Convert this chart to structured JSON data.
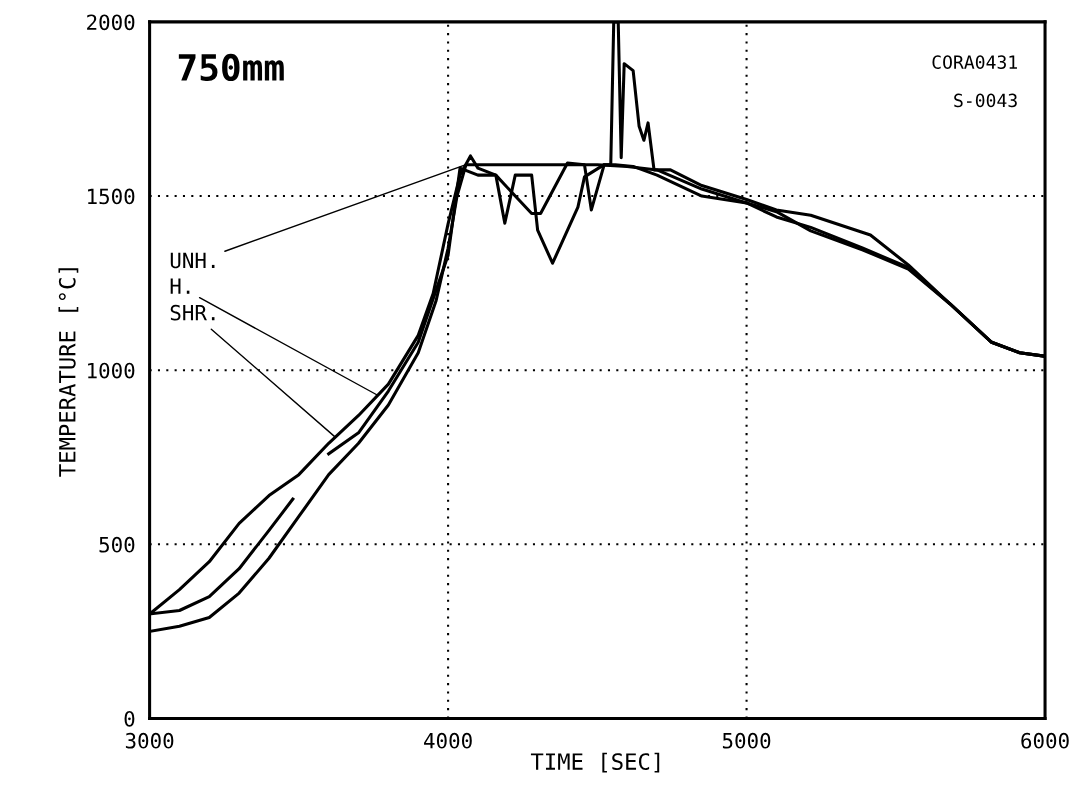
{
  "chart_data": {
    "type": "line",
    "xlabel": "TIME [SEC]",
    "ylabel": "TEMPERATURE [°C]",
    "xlim": [
      3000,
      6000
    ],
    "ylim": [
      0,
      2000
    ],
    "xticks": [
      3000,
      4000,
      5000,
      6000
    ],
    "yticks": [
      0,
      500,
      1000,
      1500,
      2000
    ],
    "grid": true,
    "legend": false,
    "marker": "none",
    "line_style": "solid",
    "annotations": [
      "750mm",
      "CORA0431",
      "S-0043",
      {
        "text": "UNH.",
        "x": 4060,
        "y": 1590
      },
      {
        "text": "H.",
        "x": 3764,
        "y": 928
      },
      {
        "text": "SHR.",
        "x": 3623,
        "y": 807
      }
    ],
    "series": [
      {
        "color": "#000000",
        "x": [
          3000,
          3100,
          3200,
          3300,
          3400,
          3500,
          3600,
          3700,
          3800,
          3900,
          3950,
          4000,
          4040,
          4075,
          4100,
          4160,
          4190,
          4225,
          4280,
          4300,
          4350,
          4435,
          4457,
          4523,
          4560,
          4620,
          4700,
          4850,
          5000,
          5100,
          5215,
          5390,
          5542,
          5682,
          5821,
          5915,
          6000
        ],
        "values": [
          300,
          370,
          450,
          560,
          640,
          700,
          790,
          870,
          960,
          1100,
          1220,
          1420,
          1560,
          1615,
          1580,
          1560,
          1422,
          1560,
          1560,
          1402,
          1307,
          1468,
          1555,
          1590,
          1590,
          1585,
          1560,
          1500,
          1480,
          1455,
          1400,
          1345,
          1290,
          1190,
          1080,
          1050,
          1040
        ]
      },
      {
        "color": "#000000",
        "x": [
          3000,
          3100,
          3200,
          3300,
          3400,
          3480,
          3500,
          3600,
          3700,
          3800,
          3900,
          4000,
          4040,
          4100,
          4160,
          4225,
          4280,
          4310,
          4400,
          4457,
          4480,
          4523,
          4545,
          4555,
          4570,
          4580,
          4590,
          4620,
          4640,
          4656,
          4670,
          4690,
          4745,
          4850,
          5000,
          5100,
          5215,
          5415,
          5542,
          5682,
          5821,
          5915,
          6000
        ],
        "values": [
          300,
          310,
          350,
          430,
          540,
          630,
          null,
          760,
          820,
          940,
          1080,
          1330,
          1580,
          1560,
          1560,
          1500,
          1450,
          1450,
          1595,
          1590,
          1460,
          1590,
          1590,
          2000,
          2000,
          1610,
          1880,
          1860,
          1700,
          1660,
          1710,
          1575,
          1575,
          1530,
          1490,
          1460,
          1445,
          1388,
          1302,
          1190,
          1080,
          1050,
          1040
        ]
      },
      {
        "color": "#000000",
        "x": [
          3000,
          3100,
          3200,
          3300,
          3400,
          3500,
          3600,
          3700,
          3800,
          3900,
          3960,
          4000,
          4030,
          4060,
          4100,
          4300,
          4500,
          4600,
          4700,
          4850,
          5000,
          5100,
          5215,
          5390,
          5542,
          5682,
          5821,
          5915,
          6000
        ],
        "values": [
          250,
          265,
          290,
          360,
          460,
          580,
          700,
          790,
          900,
          1050,
          1200,
          1350,
          1500,
          1590,
          1590,
          1590,
          1590,
          1585,
          1575,
          1520,
          1480,
          1440,
          1410,
          1350,
          1295,
          1190,
          1080,
          1050,
          1040
        ]
      }
    ]
  }
}
